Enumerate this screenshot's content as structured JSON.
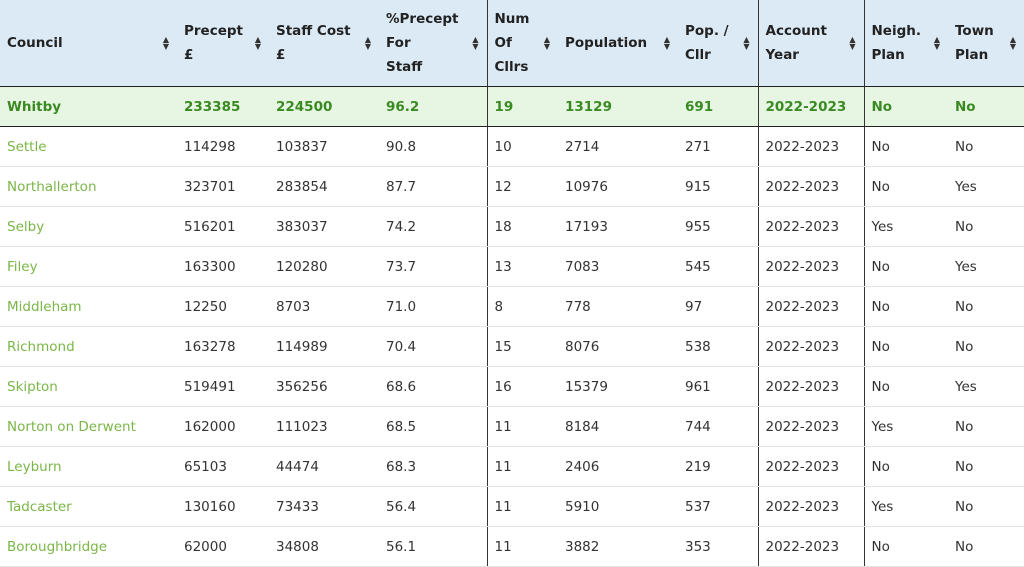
{
  "columns": [
    {
      "lines": [
        "Council"
      ],
      "sep": false
    },
    {
      "lines": [
        "Precept",
        "£"
      ],
      "sep": false
    },
    {
      "lines": [
        "Staff Cost",
        "£"
      ],
      "sep": false
    },
    {
      "lines": [
        "%Precept",
        "For",
        "Staff"
      ],
      "sep": false
    },
    {
      "lines": [
        "Num",
        "Of",
        "Cllrs"
      ],
      "sep": true
    },
    {
      "lines": [
        "Population"
      ],
      "sep": false
    },
    {
      "lines": [
        "Pop. /",
        "Cllr"
      ],
      "sep": false
    },
    {
      "lines": [
        "Account",
        "Year"
      ],
      "sep": true
    },
    {
      "lines": [
        "Neigh.",
        "Plan"
      ],
      "sep": true
    },
    {
      "lines": [
        "Town",
        "Plan"
      ],
      "sep": false
    }
  ],
  "column_widths": [
    177,
    92,
    110,
    108,
    71,
    120,
    80,
    106,
    84,
    76
  ],
  "highlight_color": "#3a8a22",
  "link_color": "#7ab648",
  "rows": [
    {
      "highlight": true,
      "cells": [
        "Whitby",
        "233385",
        "224500",
        "96.2",
        "19",
        "13129",
        "691",
        "2022-2023",
        "No",
        "No"
      ]
    },
    {
      "highlight": false,
      "cells": [
        "Settle",
        "114298",
        "103837",
        "90.8",
        "10",
        "2714",
        "271",
        "2022-2023",
        "No",
        "No"
      ]
    },
    {
      "highlight": false,
      "cells": [
        "Northallerton",
        "323701",
        "283854",
        "87.7",
        "12",
        "10976",
        "915",
        "2022-2023",
        "No",
        "Yes"
      ]
    },
    {
      "highlight": false,
      "cells": [
        "Selby",
        "516201",
        "383037",
        "74.2",
        "18",
        "17193",
        "955",
        "2022-2023",
        "Yes",
        "No"
      ]
    },
    {
      "highlight": false,
      "cells": [
        "Filey",
        "163300",
        "120280",
        "73.7",
        "13",
        "7083",
        "545",
        "2022-2023",
        "No",
        "Yes"
      ]
    },
    {
      "highlight": false,
      "cells": [
        "Middleham",
        "12250",
        "8703",
        "71.0",
        "8",
        "778",
        "97",
        "2022-2023",
        "No",
        "No"
      ]
    },
    {
      "highlight": false,
      "cells": [
        "Richmond",
        "163278",
        "114989",
        "70.4",
        "15",
        "8076",
        "538",
        "2022-2023",
        "No",
        "No"
      ]
    },
    {
      "highlight": false,
      "cells": [
        "Skipton",
        "519491",
        "356256",
        "68.6",
        "16",
        "15379",
        "961",
        "2022-2023",
        "No",
        "Yes"
      ]
    },
    {
      "highlight": false,
      "cells": [
        "Norton on Derwent",
        "162000",
        "111023",
        "68.5",
        "11",
        "8184",
        "744",
        "2022-2023",
        "Yes",
        "No"
      ]
    },
    {
      "highlight": false,
      "cells": [
        "Leyburn",
        "65103",
        "44474",
        "68.3",
        "11",
        "2406",
        "219",
        "2022-2023",
        "No",
        "No"
      ]
    },
    {
      "highlight": false,
      "cells": [
        "Tadcaster",
        "130160",
        "73433",
        "56.4",
        "11",
        "5910",
        "537",
        "2022-2023",
        "Yes",
        "No"
      ]
    },
    {
      "highlight": false,
      "cells": [
        "Boroughbridge",
        "62000",
        "34808",
        "56.1",
        "11",
        "3882",
        "353",
        "2022-2023",
        "No",
        "No"
      ]
    }
  ]
}
